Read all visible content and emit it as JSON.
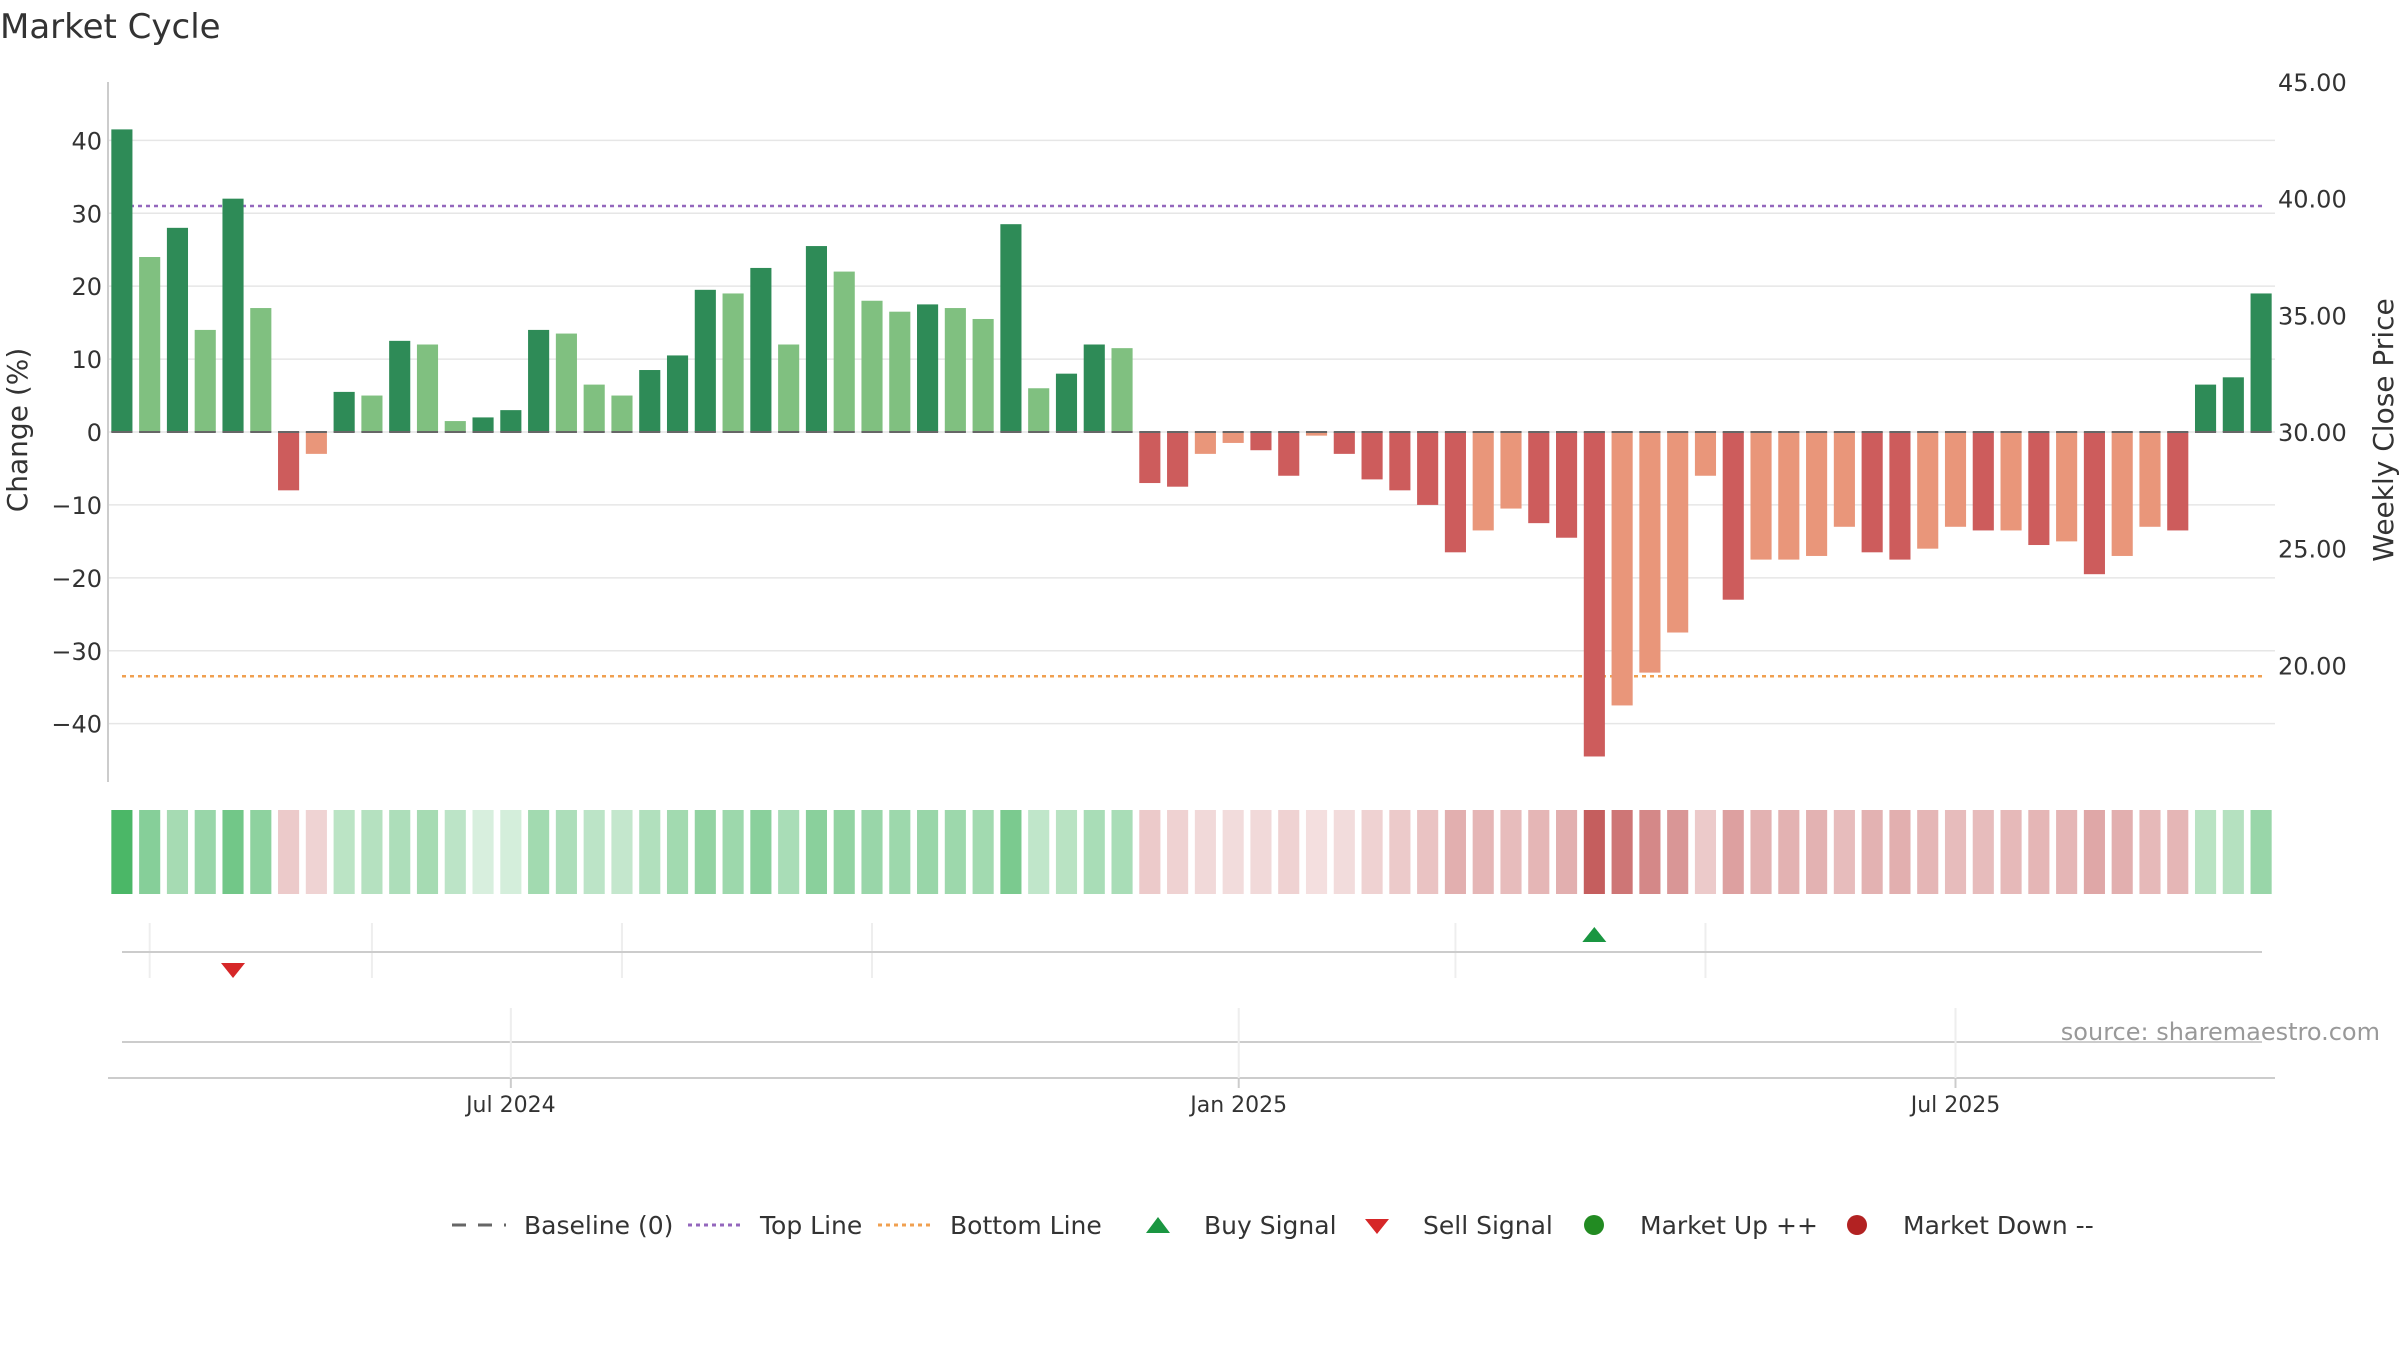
{
  "chart_data": {
    "type": "bar",
    "title": "Market Cycle",
    "ylabel": "Change (%)",
    "y2label": "Weekly Close Price",
    "ylim": [
      -48,
      48
    ],
    "y2lim": [
      15,
      45
    ],
    "yticks": [
      40,
      30,
      20,
      10,
      0,
      -10,
      -20,
      -30,
      -40
    ],
    "ytick_labels": [
      "40",
      "30",
      "20",
      "10",
      "0",
      "−10",
      "−20",
      "−30",
      "−40"
    ],
    "y2ticks": [
      45,
      40,
      35,
      30,
      25,
      20
    ],
    "y2tick_labels": [
      "45.00",
      "40.00",
      "35.00",
      "30.00",
      "25.00",
      "20.00"
    ],
    "x_tick_labels": [
      "Jul 2024",
      "Jan 2025",
      "Jul 2025"
    ],
    "x_tick_positions": [
      14.5,
      40.7,
      66.5
    ],
    "top_line": 31,
    "bottom_line": -33.5,
    "source": "source: sharemaestro.com",
    "values": [
      41.5,
      24,
      28,
      14,
      32,
      17,
      -8,
      -3,
      5.5,
      5,
      12.5,
      12,
      1.5,
      2,
      3,
      14,
      13.5,
      6.5,
      5,
      8.5,
      10.5,
      19.5,
      19,
      22.5,
      12,
      25.5,
      22,
      18,
      16.5,
      17.5,
      17,
      15.5,
      28.5,
      6,
      8,
      12,
      11.5,
      -7,
      -7.5,
      -3,
      -1.5,
      -2.5,
      -6,
      -0.5,
      -3,
      -6.5,
      -8,
      -10,
      -16.5,
      -13.5,
      -10.5,
      -12.5,
      -14.5,
      -44.5,
      -37.5,
      -33,
      -27.5,
      -6,
      -23,
      -17.5,
      -17.5,
      -17,
      -13,
      -16.5,
      -17.5,
      -16,
      -13,
      -13.5,
      -13.5,
      -15.5,
      -15,
      -19.5,
      -17,
      -13,
      -13.5,
      6.5,
      7.5,
      19
    ],
    "strength": [
      3,
      1,
      3,
      1,
      3,
      1,
      3,
      1,
      3,
      1,
      3,
      1,
      1,
      3,
      3,
      3,
      1,
      1,
      1,
      3,
      3,
      3,
      1,
      3,
      1,
      3,
      1,
      1,
      1,
      3,
      1,
      1,
      3,
      1,
      3,
      3,
      1,
      3,
      3,
      1,
      1,
      3,
      3,
      1,
      3,
      3,
      3,
      3,
      3,
      1,
      1,
      3,
      3,
      3,
      1,
      1,
      1,
      1,
      3,
      1,
      1,
      1,
      1,
      3,
      3,
      1,
      1,
      3,
      1,
      3,
      1,
      3,
      1,
      1,
      3,
      3,
      3,
      3
    ],
    "heat": [
      0.92,
      0.62,
      0.46,
      0.52,
      0.72,
      0.58,
      0.3,
      0.25,
      0.35,
      0.38,
      0.42,
      0.46,
      0.34,
      0.2,
      0.22,
      0.48,
      0.42,
      0.34,
      0.3,
      0.4,
      0.48,
      0.56,
      0.5,
      0.6,
      0.44,
      0.6,
      0.56,
      0.52,
      0.5,
      0.52,
      0.5,
      0.48,
      0.68,
      0.32,
      0.36,
      0.44,
      0.44,
      0.3,
      0.26,
      0.22,
      0.2,
      0.22,
      0.26,
      0.18,
      0.2,
      0.26,
      0.3,
      0.34,
      0.46,
      0.42,
      0.38,
      0.42,
      0.46,
      0.92,
      0.78,
      0.68,
      0.6,
      0.3,
      0.54,
      0.44,
      0.44,
      0.44,
      0.38,
      0.44,
      0.46,
      0.42,
      0.38,
      0.38,
      0.4,
      0.42,
      0.42,
      0.5,
      0.46,
      0.4,
      0.42,
      0.36,
      0.38,
      0.52
    ],
    "sell_signals": [
      4
    ],
    "buy_signals": [
      53
    ],
    "colors": {
      "pos_strong": "#2e8b57",
      "pos_weak": "#80c080",
      "neg_strong": "#cd5c5c",
      "neg_weak": "#e9967a",
      "heat_pos": "#3cb15a",
      "heat_neg": "#c05050",
      "top_line": "#9467bd",
      "bottom_line": "#f0a050",
      "baseline": "#666666",
      "buy": "#1a9641",
      "sell": "#d62728",
      "market_up": "#228b22",
      "market_down": "#b22222",
      "grid": "#e6e6e6",
      "axis": "#cccccc",
      "text": "#333333",
      "source": "#999999"
    },
    "legend": [
      {
        "label": "Baseline (0)",
        "kind": "dash",
        "color": "#666666"
      },
      {
        "label": "Top Line",
        "kind": "dot",
        "color": "#9467bd"
      },
      {
        "label": "Bottom Line",
        "kind": "dot",
        "color": "#f0a050"
      },
      {
        "label": "Buy Signal",
        "kind": "tri-up",
        "color": "#1a9641"
      },
      {
        "label": "Sell Signal",
        "kind": "tri-down",
        "color": "#d62728"
      },
      {
        "label": "Market Up ++",
        "kind": "circle",
        "color": "#228b22"
      },
      {
        "label": "Market Down --",
        "kind": "circle",
        "color": "#b22222"
      }
    ]
  }
}
